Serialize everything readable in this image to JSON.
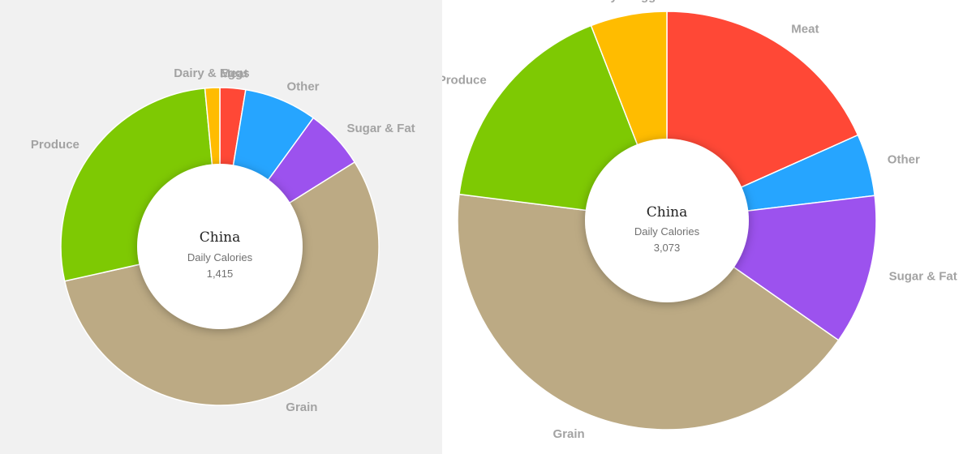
{
  "chart_data": [
    {
      "type": "pie",
      "variant": "donut",
      "center": {
        "title": "China",
        "subtitle": "Daily Calories",
        "value": "1,415"
      },
      "categories": [
        "Meat",
        "Other",
        "Sugar & Fat",
        "Grain",
        "Produce",
        "Dairy & Eggs"
      ],
      "values": [
        2.6,
        7.4,
        6.1,
        55.4,
        27.0,
        1.5
      ],
      "colors": [
        "#ff4836",
        "#26a5ff",
        "#9c52ee",
        "#bcaa84",
        "#7ec903",
        "#ffbc00"
      ]
    },
    {
      "type": "pie",
      "variant": "donut",
      "center": {
        "title": "China",
        "subtitle": "Daily Calories",
        "value": "3,073"
      },
      "categories": [
        "Meat",
        "Other",
        "Sugar & Fat",
        "Grain",
        "Produce",
        "Dairy & Eggs"
      ],
      "values": [
        18.3,
        4.8,
        11.6,
        42.3,
        17.1,
        5.9
      ],
      "colors": [
        "#ff4836",
        "#26a5ff",
        "#9c52ee",
        "#bcaa84",
        "#7ec903",
        "#ffbc00"
      ]
    }
  ]
}
